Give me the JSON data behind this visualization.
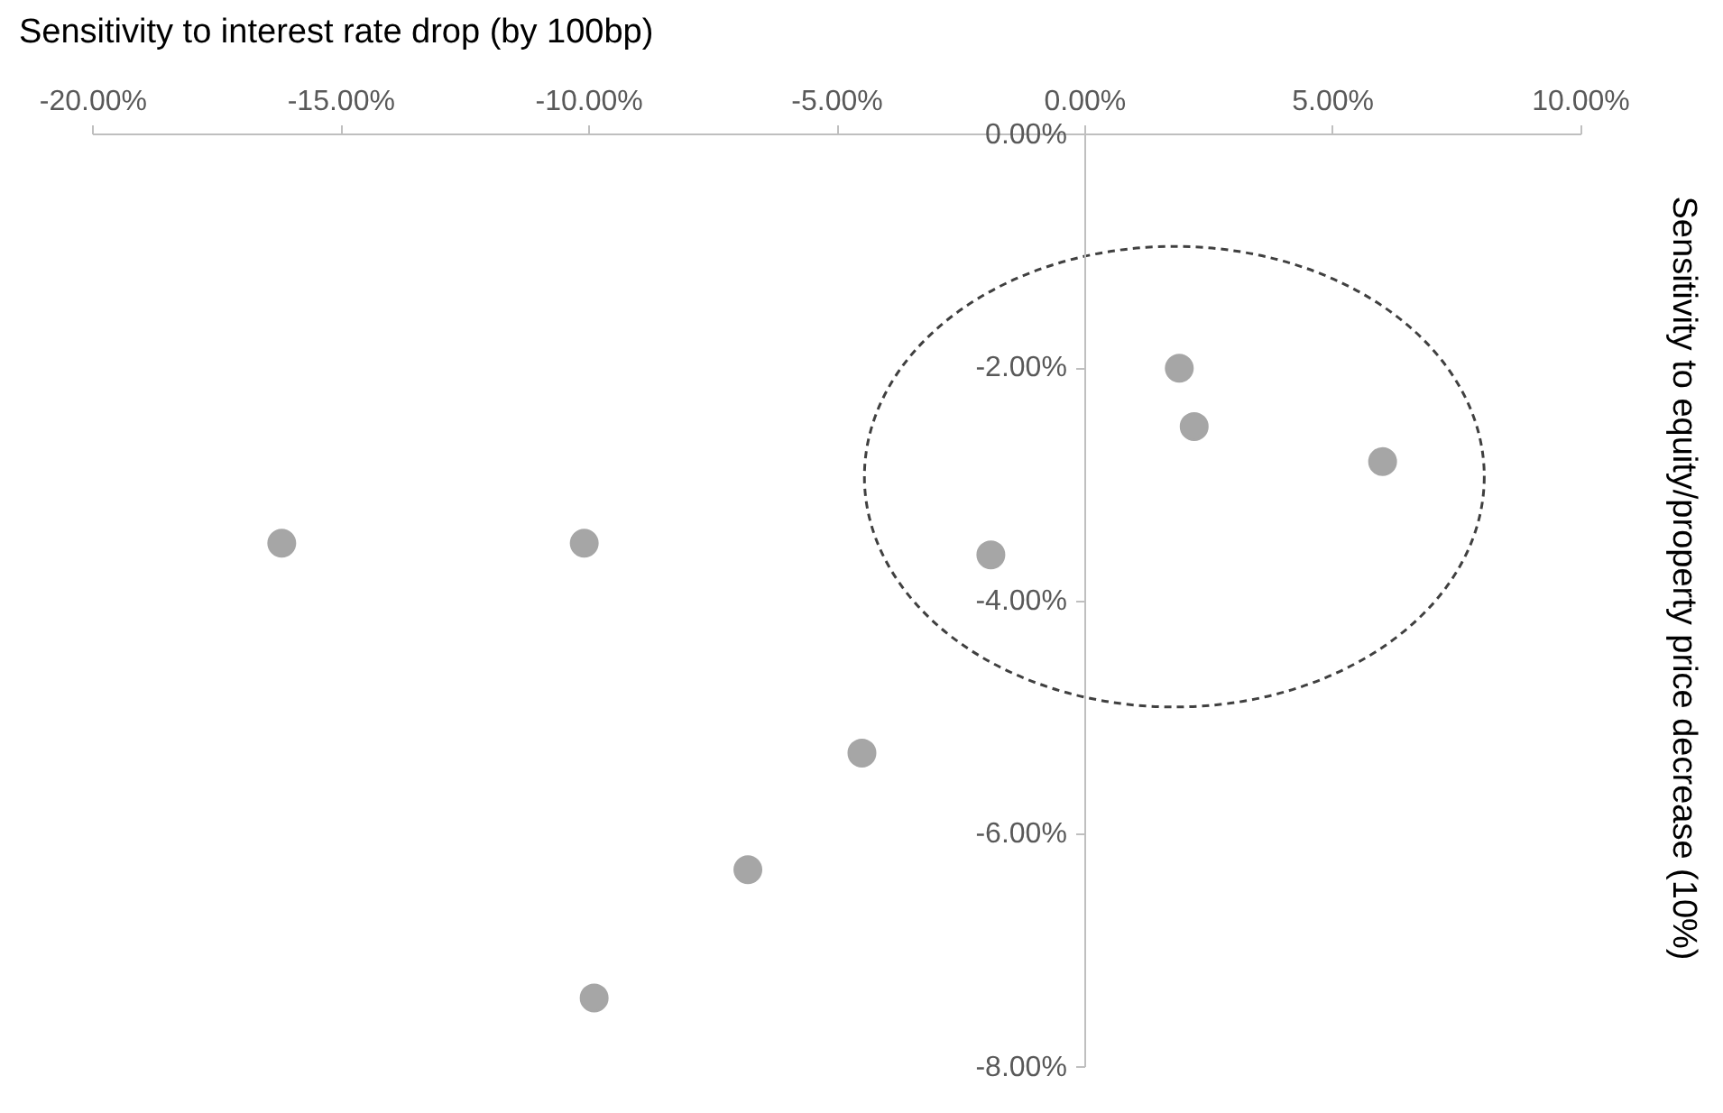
{
  "chart_data": {
    "type": "scatter",
    "xlabel": "Sensitivity to interest rate drop (by 100bp)",
    "ylabel": "Sensitivity to equity/property price decrease (10%)",
    "series": [
      {
        "color": "#a6a6a6",
        "x": [
          1.9,
          2.2,
          6.0,
          -1.9,
          -16.2,
          -10.1,
          -4.5,
          -6.8,
          -9.9
        ],
        "values": [
          -2.0,
          -2.5,
          -2.8,
          -3.6,
          -3.5,
          -3.5,
          -5.3,
          -6.3,
          -7.4
        ]
      }
    ],
    "xlim": [
      -20,
      10
    ],
    "xticks": [
      {
        "value": -20,
        "label": "-20.00%"
      },
      {
        "value": -15,
        "label": "-15.00%"
      },
      {
        "value": -10,
        "label": "-10.00%"
      },
      {
        "value": -5,
        "label": "-5.00%"
      },
      {
        "value": 0,
        "label": "0.00%"
      },
      {
        "value": 5,
        "label": "5.00%"
      },
      {
        "value": 10,
        "label": "10.00%"
      }
    ],
    "ylim": [
      -8,
      0
    ],
    "yticks": [
      {
        "value": -8,
        "label": "-8.00%"
      },
      {
        "value": -6,
        "label": "-6.00%"
      },
      {
        "value": -4,
        "label": "-4.00%"
      },
      {
        "value": -2,
        "label": "-2.00%"
      },
      {
        "value": 0,
        "label": "0.00%"
      }
    ],
    "grid": false,
    "marker": "circle"
  }
}
